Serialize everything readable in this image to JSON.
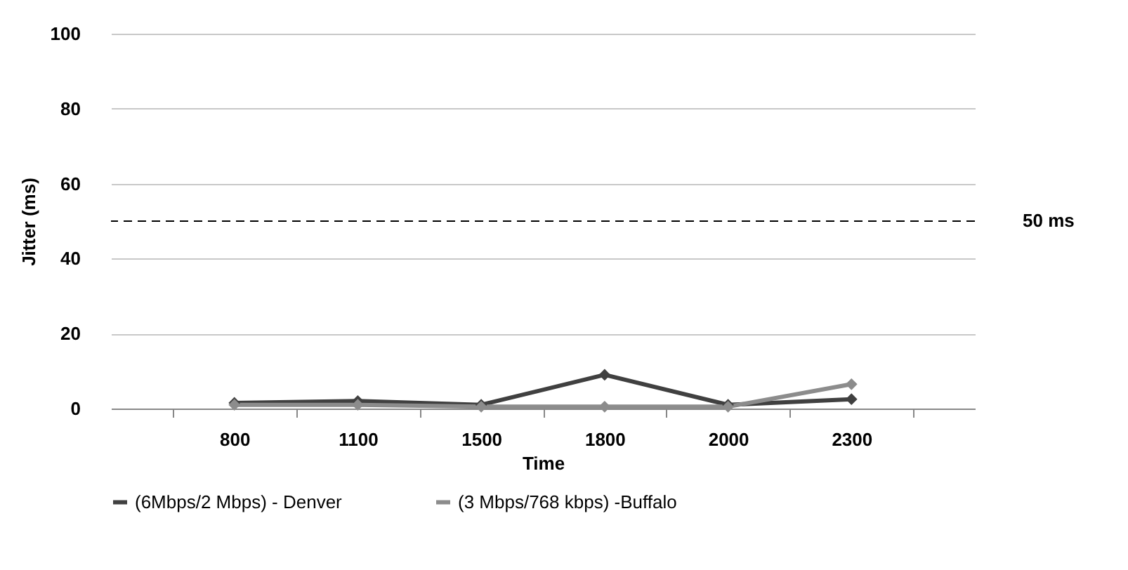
{
  "chart_data": {
    "type": "line",
    "xlabel": "Time",
    "ylabel": "Jitter (ms)",
    "categories": [
      "800",
      "1100",
      "1500",
      "1800",
      "2000",
      "2300"
    ],
    "series": [
      {
        "name": "(6Mbps/2 Mbps) - Denver",
        "color": "#404040",
        "values": [
          1.5,
          2,
          1,
          9,
          1,
          2.5
        ]
      },
      {
        "name": "(3 Mbps/768 kbps) -Buffalo",
        "color": "#8c8c8c",
        "values": [
          1,
          1,
          0.5,
          0.5,
          0.5,
          6.5
        ]
      }
    ],
    "ylim": [
      0,
      100
    ],
    "yticks": [
      0,
      20,
      40,
      60,
      80,
      100
    ],
    "grid": "y",
    "legend": "bottom",
    "marker": "diamond",
    "line_style": "solid",
    "ref_lines": [
      {
        "axis": "y",
        "value": 50,
        "label": "50 ms",
        "line_style": "dashed",
        "color": "#000000"
      }
    ]
  }
}
